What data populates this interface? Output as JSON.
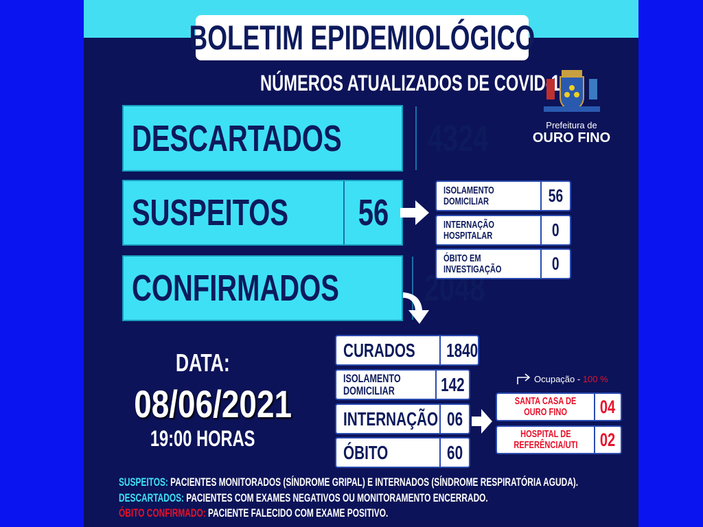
{
  "title": "BOLETIM EPIDEMIOLÓGICO",
  "subtitle": "NÚMEROS ATUALIZADOS DE COVID-19",
  "logo": {
    "small": "Prefeitura de",
    "big": "OURO FINO",
    "seal_text": "CHARITAS"
  },
  "main": [
    {
      "label": "DESCARTADOS",
      "value": "4324"
    },
    {
      "label": "SUSPEITOS",
      "value": "56"
    },
    {
      "label": "CONFIRMADOS",
      "value": "2048"
    }
  ],
  "suspects": [
    {
      "label1": "ISOLAMENTO",
      "label2": "DOMICILIAR",
      "value": "56"
    },
    {
      "label1": "INTERNAÇÃO",
      "label2": "HOSPITALAR",
      "value": "0"
    },
    {
      "label1": "ÓBITO EM",
      "label2": "INVESTIGAÇÃO",
      "value": "0"
    }
  ],
  "confirmed": [
    {
      "label": "CURADOS",
      "value": "1840"
    },
    {
      "label1": "ISOLAMENTO",
      "label2": "DOMICILIAR",
      "value": "142"
    },
    {
      "label": "INTERNAÇÃO",
      "value": "06"
    },
    {
      "label": "ÓBITO",
      "value": "60"
    }
  ],
  "occupancy": {
    "label": "Ocupação - ",
    "value": "100 %"
  },
  "hospitals": [
    {
      "label1": "SANTA CASA DE",
      "label2": "OURO FINO",
      "value": "04"
    },
    {
      "label1": "HOSPITAL DE",
      "label2": "REFERÊNCIA/UTI",
      "value": "02"
    }
  ],
  "date": {
    "label": "DATA:",
    "date": "08/06/2021",
    "time": "19:00 HORAS"
  },
  "footer": [
    {
      "term": "SUSPEITOS:",
      "text": " PACIENTES MONITORADOS (SÍNDROME GRIPAL) E INTERNADOS (SÍNDROME RESPIRATÓRIA AGUDA)."
    },
    {
      "term": "DESCARTADOS:",
      "text": " PACIENTES COM EXAMES NEGATIVOS OU MONITORAMENTO ENCERRADO."
    },
    {
      "term": "ÓBITO CONFIRMADO:",
      "text": " PACIENTE FALECIDO COM EXAME POSITIVO."
    }
  ],
  "colors": {
    "background": "#0c1358",
    "cyan": "#3ee0f5",
    "side": "#0a14f0",
    "red": "#e8102a",
    "navy_text": "#0d1a5c"
  }
}
